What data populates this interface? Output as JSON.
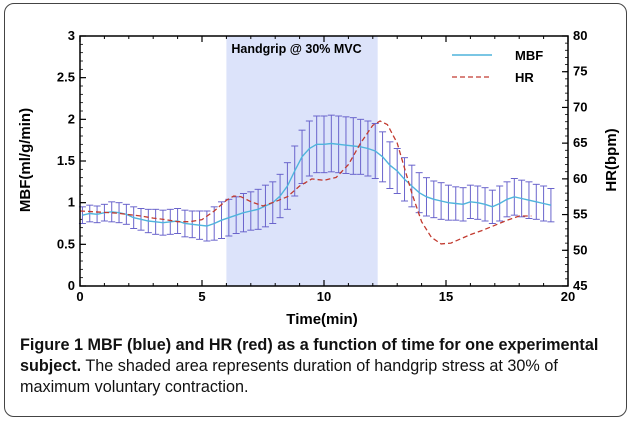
{
  "chart_data": {
    "type": "line",
    "xlabel": "Time(min)",
    "ylabel_left": "MBF(ml/g/min)",
    "ylabel_right": "HR(bpm)",
    "xlim": [
      0,
      20
    ],
    "ylim_left": [
      0,
      3
    ],
    "ylim_right": [
      45,
      80
    ],
    "x_ticks": [
      0,
      5,
      10,
      15,
      20
    ],
    "y_ticks_left": [
      0,
      0.5,
      1,
      1.5,
      2,
      2.5,
      3
    ],
    "y_ticks_right": [
      45,
      50,
      55,
      60,
      65,
      70,
      75,
      80
    ],
    "x_tick_labels": [
      "0",
      "5",
      "10",
      "15",
      "20"
    ],
    "y_tick_labels_left": [
      "0",
      "0.5",
      "1",
      "1.5",
      "2",
      "2.5",
      "3"
    ],
    "y_tick_labels_right": [
      "45",
      "50",
      "55",
      "60",
      "65",
      "70",
      "75",
      "80"
    ],
    "shaded_region": {
      "x_start": 6.0,
      "x_end": 12.2,
      "label": "Handgrip @ 30% MVC",
      "color": "#dce3fa"
    },
    "legend_position": "top-right",
    "series": [
      {
        "name": "MBF",
        "axis": "left",
        "color": "#4fb4dc",
        "style": "solid",
        "x": [
          0.1,
          0.4,
          0.7,
          1.0,
          1.3,
          1.6,
          1.9,
          2.2,
          2.5,
          2.8,
          3.1,
          3.4,
          3.7,
          4.0,
          4.3,
          4.6,
          4.9,
          5.2,
          5.5,
          5.8,
          6.1,
          6.4,
          6.7,
          7.0,
          7.3,
          7.6,
          7.9,
          8.2,
          8.5,
          8.8,
          9.1,
          9.4,
          9.7,
          10.0,
          10.3,
          10.6,
          10.9,
          11.2,
          11.5,
          11.8,
          12.1,
          12.4,
          12.7,
          13.0,
          13.3,
          13.6,
          13.9,
          14.2,
          14.5,
          14.8,
          15.1,
          15.4,
          15.7,
          16.0,
          16.3,
          16.6,
          16.9,
          17.2,
          17.5,
          17.8,
          18.1,
          18.4,
          18.7,
          19.0,
          19.3
        ],
        "y": [
          0.85,
          0.87,
          0.86,
          0.88,
          0.89,
          0.88,
          0.86,
          0.82,
          0.8,
          0.78,
          0.77,
          0.76,
          0.77,
          0.78,
          0.75,
          0.74,
          0.73,
          0.72,
          0.75,
          0.79,
          0.82,
          0.85,
          0.88,
          0.9,
          0.92,
          0.96,
          1.0,
          1.08,
          1.2,
          1.38,
          1.55,
          1.65,
          1.7,
          1.7,
          1.71,
          1.7,
          1.69,
          1.68,
          1.67,
          1.65,
          1.62,
          1.55,
          1.45,
          1.38,
          1.28,
          1.2,
          1.12,
          1.07,
          1.04,
          1.02,
          1.0,
          0.99,
          0.98,
          1.01,
          1.0,
          0.98,
          0.95,
          0.99,
          1.04,
          1.07,
          1.05,
          1.03,
          1.01,
          0.99,
          0.97
        ],
        "error": [
          0.1,
          0.1,
          0.1,
          0.1,
          0.12,
          0.12,
          0.12,
          0.13,
          0.13,
          0.14,
          0.15,
          0.15,
          0.15,
          0.15,
          0.16,
          0.16,
          0.17,
          0.18,
          0.2,
          0.22,
          0.22,
          0.22,
          0.23,
          0.23,
          0.24,
          0.25,
          0.25,
          0.26,
          0.28,
          0.3,
          0.32,
          0.33,
          0.34,
          0.34,
          0.34,
          0.34,
          0.34,
          0.34,
          0.33,
          0.33,
          0.33,
          0.3,
          0.28,
          0.27,
          0.26,
          0.25,
          0.24,
          0.23,
          0.22,
          0.22,
          0.21,
          0.2,
          0.2,
          0.2,
          0.2,
          0.2,
          0.2,
          0.21,
          0.21,
          0.22,
          0.22,
          0.22,
          0.21,
          0.21,
          0.2
        ]
      },
      {
        "name": "HR",
        "axis": "right",
        "color": "#c23b30",
        "style": "dashed",
        "x": [
          0,
          0.5,
          1,
          1.5,
          2,
          2.5,
          3,
          3.5,
          4,
          4.5,
          5,
          5.5,
          6,
          6.3,
          6.6,
          7,
          7.5,
          8,
          8.5,
          9,
          9.5,
          10,
          10.5,
          11,
          11.5,
          12,
          12.3,
          12.6,
          13,
          13.3,
          13.6,
          14,
          14.4,
          14.8,
          15.2,
          15.6,
          16,
          16.5,
          17,
          17.5,
          18,
          18.5
        ],
        "y": [
          55.5,
          55.4,
          55.3,
          55.2,
          55.0,
          54.8,
          54.5,
          54.3,
          54.0,
          54.0,
          54.3,
          55.5,
          57.0,
          57.6,
          57.5,
          56.8,
          56.2,
          56.8,
          57.5,
          59.0,
          60.0,
          59.8,
          60.2,
          62.0,
          65.0,
          67.5,
          68.1,
          67.6,
          65.0,
          61.5,
          58.0,
          54.0,
          51.8,
          50.9,
          51.0,
          51.6,
          52.2,
          52.8,
          53.5,
          54.2,
          54.8,
          54.8
        ]
      }
    ]
  },
  "legend": {
    "items": [
      {
        "label": "MBF",
        "color": "#4fb4dc",
        "style": "solid"
      },
      {
        "label": "HR",
        "color": "#c23b30",
        "style": "dashed"
      }
    ]
  },
  "caption": {
    "figure_label": "Figure 1",
    "bold_text": "MBF (blue) and HR (red) as a function of time for one experimental subject.",
    "text": "The shaded area represents duration of handgrip stress at 30% of maximum voluntary contraction."
  }
}
